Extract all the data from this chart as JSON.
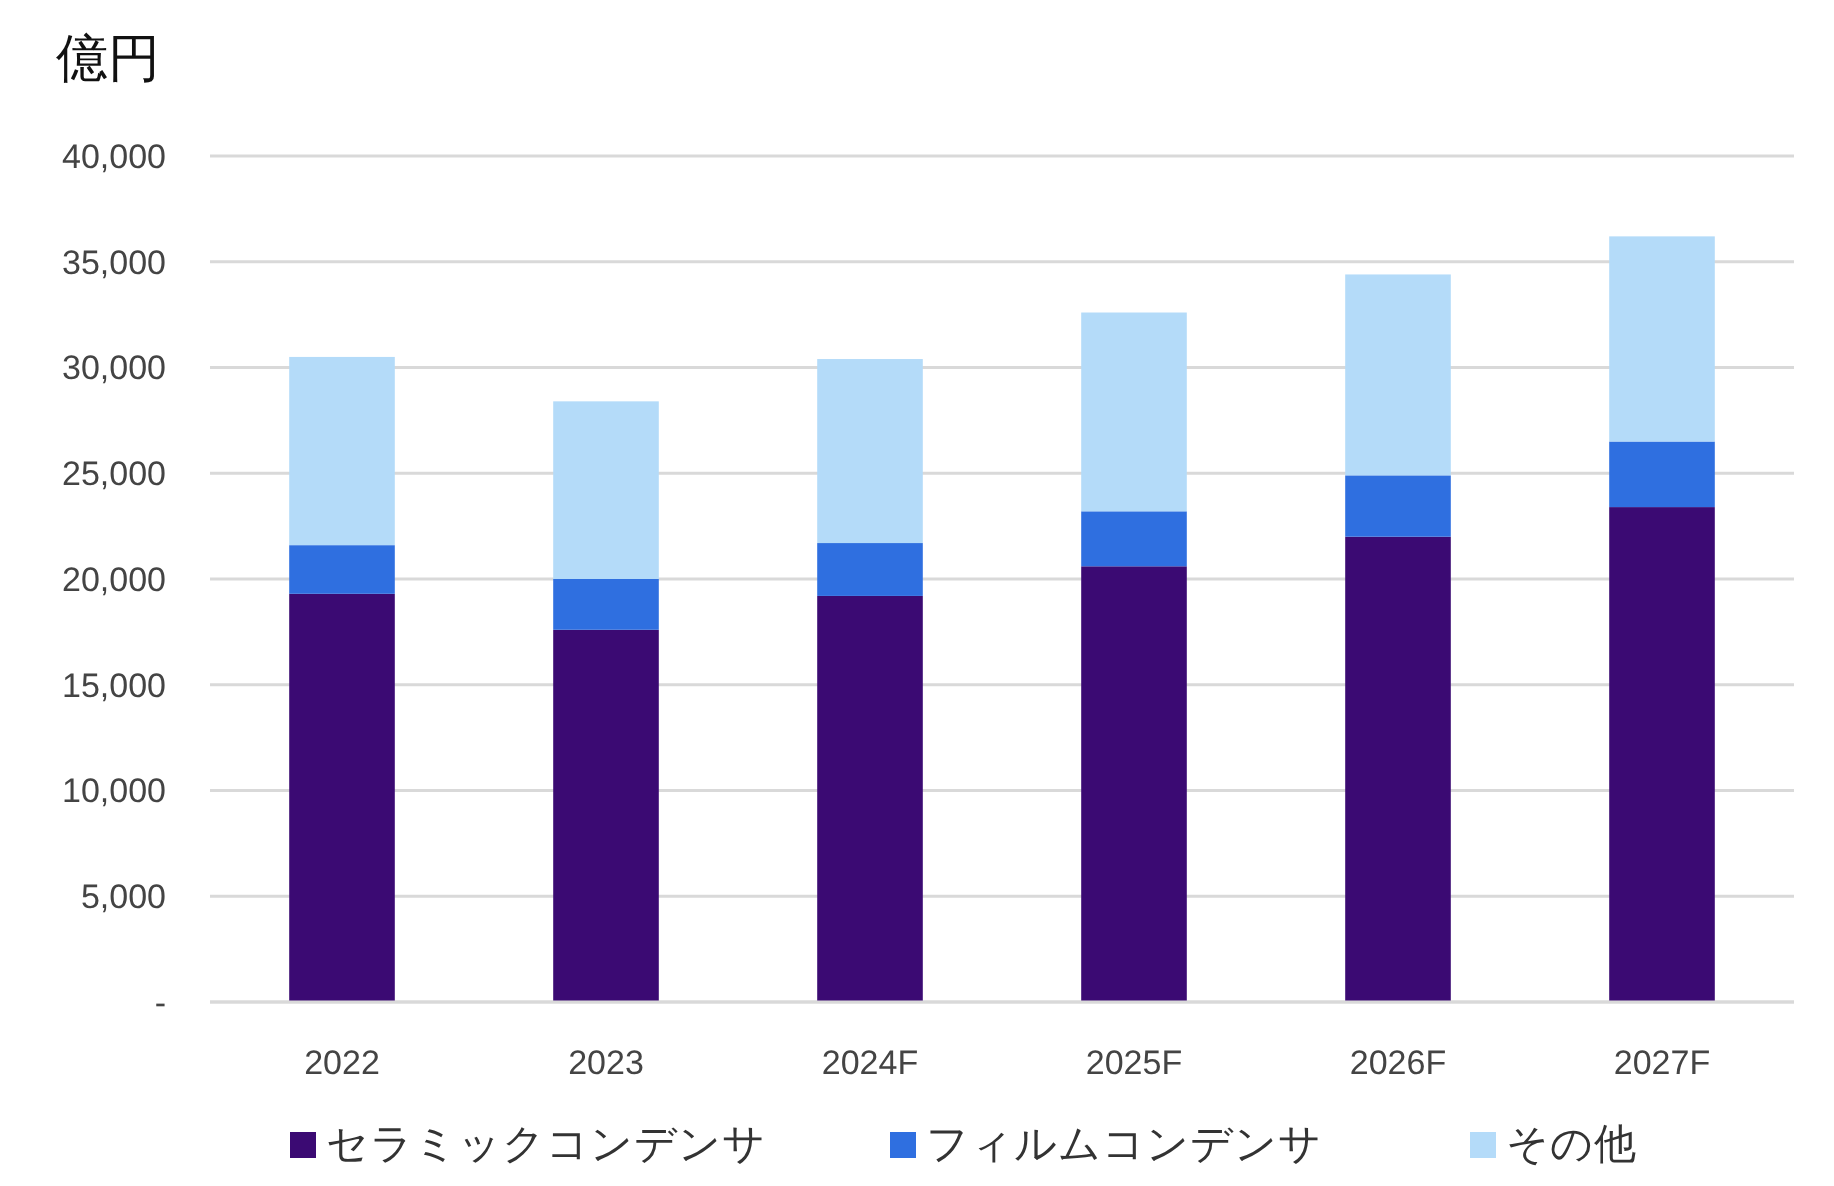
{
  "chart_data": {
    "type": "bar",
    "stacked": true,
    "ylabel": "億円",
    "categories": [
      "2022",
      "2023",
      "2024F",
      "2025F",
      "2026F",
      "2027F"
    ],
    "series": [
      {
        "name": "セラミックコンデンサ",
        "color": "#3b0a73",
        "values": [
          19300,
          17600,
          19200,
          20600,
          22000,
          23400
        ]
      },
      {
        "name": "フィルムコンデンサ",
        "color": "#2f6fe0",
        "values": [
          2300,
          2400,
          2500,
          2600,
          2900,
          3100
        ]
      },
      {
        "name": "その他",
        "color": "#b4dbf9",
        "values": [
          8900,
          8400,
          8700,
          9400,
          9500,
          9700
        ]
      }
    ],
    "ylim": [
      0,
      40000
    ],
    "yticks": [
      {
        "value": 0,
        "label": "-"
      },
      {
        "value": 5000,
        "label": "5,000"
      },
      {
        "value": 10000,
        "label": "10,000"
      },
      {
        "value": 15000,
        "label": "15,000"
      },
      {
        "value": 20000,
        "label": "20,000"
      },
      {
        "value": 25000,
        "label": "25,000"
      },
      {
        "value": 30000,
        "label": "30,000"
      },
      {
        "value": 35000,
        "label": "35,000"
      },
      {
        "value": 40000,
        "label": "40,000"
      }
    ],
    "grid": "y",
    "legend": "bottom"
  }
}
